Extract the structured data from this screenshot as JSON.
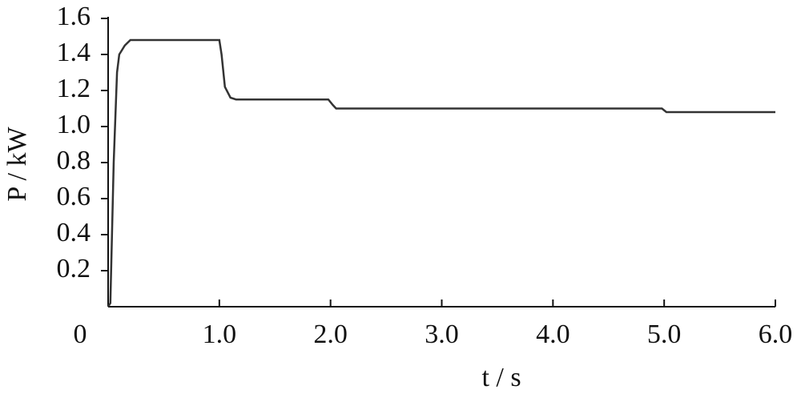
{
  "chart_data": {
    "type": "line",
    "x_label": "t / s",
    "y_label": "P / kW",
    "series": [
      {
        "color": "#333333",
        "x": [
          0,
          0.02,
          0.05,
          0.08,
          0.1,
          0.15,
          0.2,
          1.0,
          1.02,
          1.05,
          1.1,
          1.15,
          1.98,
          2.02,
          2.05,
          4.98,
          5.02,
          6.0
        ],
        "values": [
          0,
          0.02,
          0.8,
          1.3,
          1.4,
          1.45,
          1.48,
          1.48,
          1.4,
          1.22,
          1.16,
          1.15,
          1.15,
          1.12,
          1.1,
          1.1,
          1.08,
          1.08
        ]
      }
    ],
    "xlim": [
      0,
      6
    ],
    "xticks": [
      0,
      {
        "value": 1,
        "label": "1.0"
      },
      {
        "value": 2,
        "label": "2.0"
      },
      {
        "value": 3,
        "label": "3.0"
      },
      {
        "value": 4,
        "label": "4.0"
      },
      {
        "value": 5,
        "label": "5.0"
      },
      {
        "value": 6,
        "label": "6.0"
      }
    ],
    "ylim": [
      0,
      1.6
    ],
    "yticks": [
      0.2,
      0.4,
      0.6,
      0.8,
      {
        "value": 1,
        "label": "1.0"
      },
      1.2,
      1.4,
      1.6
    ],
    "grid": false
  }
}
